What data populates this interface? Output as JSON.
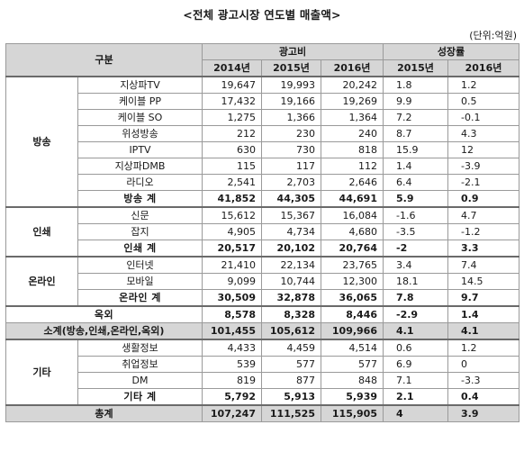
{
  "title": "<전체 광고시장 연도별 매출액>",
  "unit": "(단위:억원)",
  "header": {
    "category": "구분",
    "ad_cost": "광고비",
    "growth": "성장률",
    "years_cost": [
      "2014년",
      "2015년",
      "2016년"
    ],
    "years_growth": [
      "2015년",
      "2016년"
    ]
  },
  "groups": [
    {
      "name": "방송",
      "rows": [
        {
          "label": "지상파TV",
          "v": [
            "19,647",
            "19,993",
            "20,242"
          ],
          "g": [
            "1.8",
            "1.2"
          ]
        },
        {
          "label": "케이블 PP",
          "v": [
            "17,432",
            "19,166",
            "19,269"
          ],
          "g": [
            "9.9",
            "0.5"
          ]
        },
        {
          "label": "케이블 SO",
          "v": [
            "1,275",
            "1,366",
            "1,364"
          ],
          "g": [
            "7.2",
            "-0.1"
          ]
        },
        {
          "label": "위성방송",
          "v": [
            "212",
            "230",
            "240"
          ],
          "g": [
            "8.7",
            "4.3"
          ]
        },
        {
          "label": "IPTV",
          "v": [
            "630",
            "730",
            "818"
          ],
          "g": [
            "15.9",
            "12"
          ]
        },
        {
          "label": "지상파DMB",
          "v": [
            "115",
            "117",
            "112"
          ],
          "g": [
            "1.4",
            "-3.9"
          ]
        },
        {
          "label": "라디오",
          "v": [
            "2,541",
            "2,703",
            "2,646"
          ],
          "g": [
            "6.4",
            "-2.1"
          ]
        }
      ],
      "total": {
        "label": "방송 계",
        "v": [
          "41,852",
          "44,305",
          "44,691"
        ],
        "g": [
          "5.9",
          "0.9"
        ]
      }
    },
    {
      "name": "인쇄",
      "rows": [
        {
          "label": "신문",
          "v": [
            "15,612",
            "15,367",
            "16,084"
          ],
          "g": [
            "-1.6",
            "4.7"
          ]
        },
        {
          "label": "잡지",
          "v": [
            "4,905",
            "4,734",
            "4,680"
          ],
          "g": [
            "-3.5",
            "-1.2"
          ]
        }
      ],
      "total": {
        "label": "인쇄 계",
        "v": [
          "20,517",
          "20,102",
          "20,764"
        ],
        "g": [
          "-2",
          "3.3"
        ]
      }
    },
    {
      "name": "온라인",
      "rows": [
        {
          "label": "인터넷",
          "v": [
            "21,410",
            "22,134",
            "23,765"
          ],
          "g": [
            "3.4",
            "7.4"
          ]
        },
        {
          "label": "모바일",
          "v": [
            "9,099",
            "10,744",
            "12,300"
          ],
          "g": [
            "18.1",
            "14.5"
          ]
        }
      ],
      "total": {
        "label": "온라인 계",
        "v": [
          "30,509",
          "32,878",
          "36,065"
        ],
        "g": [
          "7.8",
          "9.7"
        ]
      }
    }
  ],
  "outdoor": {
    "label": "옥외",
    "v": [
      "8,578",
      "8,328",
      "8,446"
    ],
    "g": [
      "-2.9",
      "1.4"
    ]
  },
  "subtotal": {
    "label": "소계(방송,인쇄,온라인,옥외)",
    "v": [
      "101,455",
      "105,612",
      "109,966"
    ],
    "g": [
      "4.1",
      "4.1"
    ]
  },
  "others": {
    "name": "기타",
    "rows": [
      {
        "label": "생활정보",
        "v": [
          "4,433",
          "4,459",
          "4,514"
        ],
        "g": [
          "0.6",
          "1.2"
        ]
      },
      {
        "label": "취업정보",
        "v": [
          "539",
          "577",
          "577"
        ],
        "g": [
          "6.9",
          "0"
        ]
      },
      {
        "label": "DM",
        "v": [
          "819",
          "877",
          "848"
        ],
        "g": [
          "7.1",
          "-3.3"
        ]
      }
    ],
    "total": {
      "label": "기타 계",
      "v": [
        "5,792",
        "5,913",
        "5,939"
      ],
      "g": [
        "2.1",
        "0.4"
      ]
    }
  },
  "grand_total": {
    "label": "총계",
    "v": [
      "107,247",
      "111,525",
      "115,905"
    ],
    "g": [
      "4",
      "3.9"
    ]
  }
}
